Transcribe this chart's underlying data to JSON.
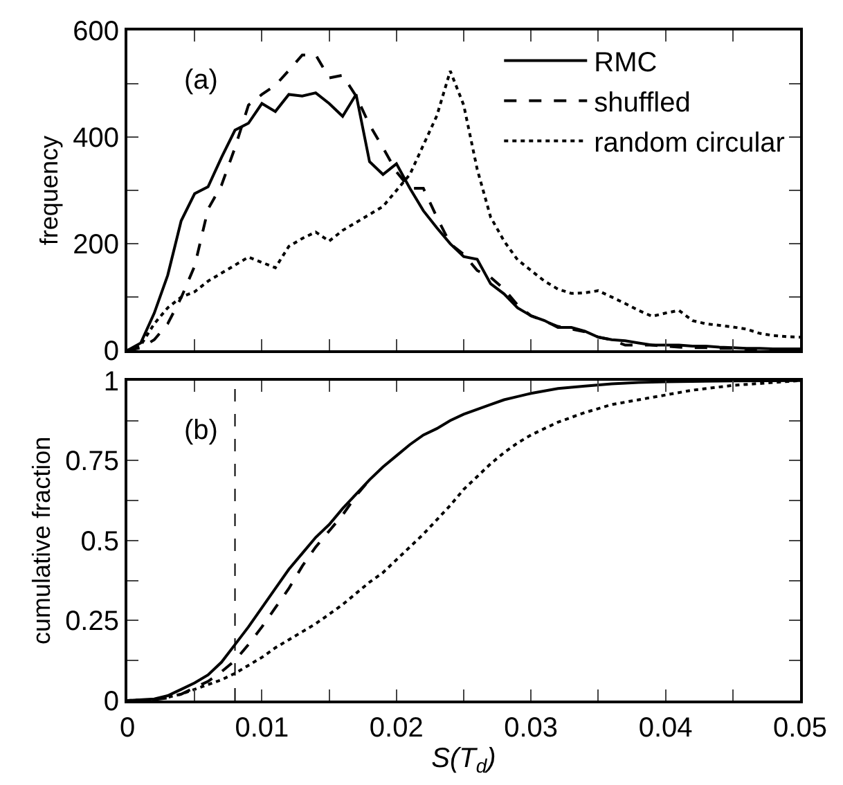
{
  "chart_data": [
    {
      "type": "line",
      "ylabel": "frequency",
      "annotations": [
        "(a)"
      ],
      "legend": "top right",
      "tick_labels": "y",
      "x": [
        0,
        0.001,
        0.002,
        0.003,
        0.004,
        0.005,
        0.006,
        0.007,
        0.008,
        0.009,
        0.01,
        0.011,
        0.012,
        0.013,
        0.014,
        0.015,
        0.016,
        0.017,
        0.018,
        0.019,
        0.02,
        0.021,
        0.022,
        0.023,
        0.024,
        0.025,
        0.026,
        0.027,
        0.028,
        0.029,
        0.03,
        0.031,
        0.032,
        0.033,
        0.034,
        0.035,
        0.036,
        0.037,
        0.038,
        0.039,
        0.04,
        0.041,
        0.042,
        0.043,
        0.044,
        0.045,
        0.046,
        0.047,
        0.048,
        0.049,
        0.05
      ],
      "xlim": [
        0,
        0.05
      ],
      "xticks": [
        0,
        {
          "value": 0.005,
          "label": null
        },
        0.01,
        {
          "value": 0.015,
          "label": null
        },
        0.02,
        {
          "value": 0.025,
          "label": null
        },
        0.03,
        {
          "value": 0.035,
          "label": null
        },
        0.04,
        {
          "value": 0.045,
          "label": null
        },
        0.05
      ],
      "ylim": [
        0,
        600
      ],
      "yticks": [
        0,
        {
          "value": 100,
          "label": null
        },
        200,
        {
          "value": 300,
          "label": null
        },
        400,
        {
          "value": 500,
          "label": null
        },
        600
      ],
      "series": [
        {
          "name": "RMC",
          "color": "#000000",
          "line_style": "solid",
          "values": [
            0,
            14,
            70,
            141,
            243,
            294,
            307,
            362,
            413,
            426,
            463,
            448,
            480,
            477,
            483,
            463,
            439,
            480,
            354,
            330,
            350,
            304,
            262,
            230,
            200,
            176,
            171,
            125,
            106,
            80,
            65,
            56,
            43,
            43,
            36,
            25,
            20,
            18,
            14,
            10,
            10,
            10,
            8,
            8,
            6,
            5,
            4,
            4,
            3,
            3,
            3
          ]
        },
        {
          "name": "shuffled",
          "color": "#000000",
          "line_style": "dashed",
          "values": [
            0,
            5,
            20,
            50,
            99,
            158,
            265,
            310,
            380,
            460,
            480,
            497,
            525,
            554,
            554,
            511,
            516,
            477,
            423,
            380,
            335,
            304,
            304,
            250,
            200,
            180,
            150,
            137,
            115,
            85,
            65,
            55,
            45,
            40,
            35,
            25,
            20,
            10,
            10,
            10,
            8,
            6,
            5,
            5,
            4,
            4,
            3,
            3,
            3,
            3,
            3
          ]
        },
        {
          "name": "random circular",
          "color": "#000000",
          "line_style": "dotted",
          "values": [
            0,
            10,
            50,
            80,
            100,
            110,
            130,
            145,
            160,
            175,
            165,
            155,
            195,
            210,
            222,
            205,
            225,
            240,
            255,
            270,
            300,
            330,
            385,
            440,
            524,
            460,
            340,
            250,
            205,
            170,
            150,
            130,
            115,
            107,
            108,
            112,
            100,
            88,
            75,
            64,
            70,
            75,
            56,
            50,
            47,
            44,
            40,
            32,
            28,
            26,
            25
          ]
        }
      ]
    },
    {
      "type": "line",
      "xlabel": "S(T$_{d}$)",
      "ylabel": "cumulative fraction",
      "annotations": [
        "(b)"
      ],
      "legend": false,
      "xlim": [
        0,
        0.05
      ],
      "xticks": [
        0,
        {
          "value": 0.005,
          "label": null
        },
        0.01,
        {
          "value": 0.015,
          "label": null
        },
        0.02,
        {
          "value": 0.025,
          "label": null
        },
        0.03,
        {
          "value": 0.035,
          "label": null
        },
        0.04,
        {
          "value": 0.045,
          "label": null
        },
        0.05
      ],
      "ylim": [
        0,
        1
      ],
      "yticks": [
        0,
        {
          "value": 0.125,
          "label": null
        },
        0.25,
        {
          "value": 0.375,
          "label": null
        },
        0.5,
        {
          "value": 0.625,
          "label": null
        },
        0.75,
        {
          "value": 0.875,
          "label": null
        },
        1
      ],
      "ref_lines": [
        {
          "axis": "x",
          "value": 0.008,
          "color": "#000000",
          "line_style": "dashed"
        }
      ],
      "series": [
        {
          "color": "#000000",
          "line_style": "solid",
          "x": [
            0,
            0.002,
            0.003,
            0.004,
            0.005,
            0.006,
            0.007,
            0.008,
            0.009,
            0.01,
            0.011,
            0.012,
            0.013,
            0.014,
            0.015,
            0.016,
            0.017,
            0.018,
            0.019,
            0.02,
            0.021,
            0.022,
            0.023,
            0.024,
            0.025,
            0.026,
            0.027,
            0.028,
            0.029,
            0.03,
            0.032,
            0.034,
            0.036,
            0.038,
            0.04,
            0.045,
            0.05
          ],
          "values": [
            0,
            0.005,
            0.015,
            0.035,
            0.055,
            0.08,
            0.12,
            0.175,
            0.23,
            0.29,
            0.35,
            0.41,
            0.46,
            0.51,
            0.55,
            0.6,
            0.645,
            0.69,
            0.73,
            0.765,
            0.8,
            0.83,
            0.85,
            0.875,
            0.895,
            0.91,
            0.925,
            0.94,
            0.95,
            0.96,
            0.975,
            0.983,
            0.99,
            0.994,
            0.996,
            0.999,
            1
          ]
        },
        {
          "color": "#000000",
          "line_style": "dashed",
          "x": [
            0.002,
            0.003,
            0.004,
            0.005,
            0.006,
            0.007,
            0.008,
            0.009,
            0.01,
            0.011,
            0.012,
            0.013,
            0.014,
            0.015,
            0.016,
            0.017,
            0.018
          ],
          "values": [
            0.003,
            0.008,
            0.02,
            0.04,
            0.06,
            0.09,
            0.125,
            0.175,
            0.23,
            0.29,
            0.35,
            0.42,
            0.48,
            0.53,
            0.58,
            0.64,
            0.69
          ]
        },
        {
          "color": "#000000",
          "line_style": "dotted",
          "x": [
            0,
            0.002,
            0.003,
            0.004,
            0.005,
            0.006,
            0.007,
            0.008,
            0.009,
            0.01,
            0.011,
            0.012,
            0.013,
            0.014,
            0.015,
            0.016,
            0.017,
            0.018,
            0.019,
            0.02,
            0.021,
            0.022,
            0.023,
            0.024,
            0.025,
            0.026,
            0.027,
            0.028,
            0.029,
            0.03,
            0.032,
            0.034,
            0.036,
            0.038,
            0.04,
            0.042,
            0.045,
            0.05
          ],
          "values": [
            0,
            0.003,
            0.01,
            0.02,
            0.035,
            0.05,
            0.065,
            0.085,
            0.11,
            0.135,
            0.165,
            0.19,
            0.215,
            0.24,
            0.27,
            0.3,
            0.335,
            0.37,
            0.4,
            0.44,
            0.48,
            0.52,
            0.565,
            0.61,
            0.66,
            0.7,
            0.74,
            0.775,
            0.805,
            0.83,
            0.87,
            0.9,
            0.925,
            0.94,
            0.955,
            0.97,
            0.985,
            1
          ]
        }
      ]
    }
  ]
}
